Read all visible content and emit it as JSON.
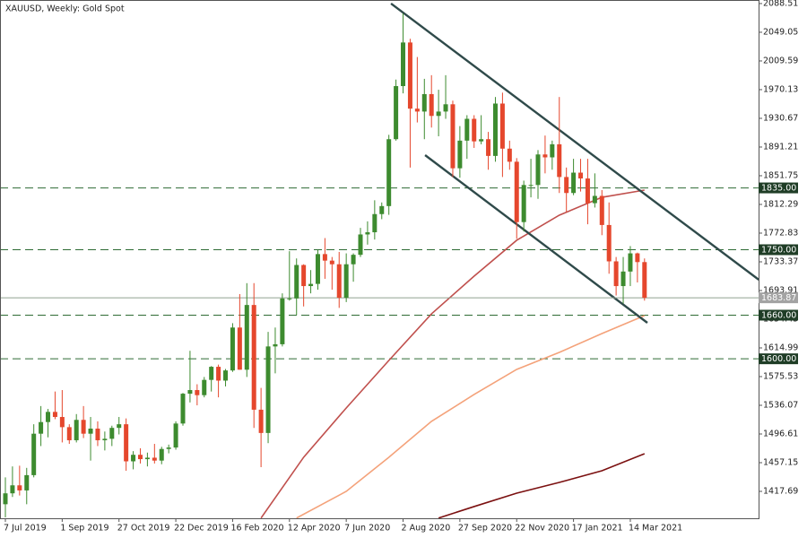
{
  "chart_data": {
    "type": "candlestick",
    "title": "XAUUSD, Weekly:  Gold Spot",
    "categories": [
      "7 Jul 2019",
      null,
      null,
      null,
      null,
      null,
      null,
      null,
      "1 Sep 2019",
      null,
      null,
      null,
      null,
      null,
      null,
      null,
      "27 Oct 2019",
      null,
      null,
      null,
      null,
      null,
      null,
      null,
      "22 Dec 2019",
      null,
      null,
      null,
      null,
      null,
      null,
      null,
      "16 Feb 2020",
      null,
      null,
      null,
      null,
      null,
      null,
      null,
      "12 Apr 2020",
      null,
      null,
      null,
      null,
      null,
      null,
      null,
      "7 Jun 2020",
      null,
      null,
      null,
      null,
      null,
      null,
      null,
      "2 Aug 2020",
      null,
      null,
      null,
      null,
      null,
      null,
      null,
      "27 Sep 2020",
      null,
      null,
      null,
      null,
      null,
      null,
      null,
      "22 Nov 2020",
      null,
      null,
      null,
      null,
      null,
      null,
      null,
      "17 Jan 2021",
      null,
      null,
      null,
      null,
      null,
      null,
      null,
      "14 Mar 2021",
      null,
      null
    ],
    "open": [
      1400,
      1415,
      1426,
      1419,
      1440,
      1497,
      1513,
      1527,
      1520,
      1506,
      1488,
      1516,
      1497,
      1504,
      1488,
      1490,
      1505,
      1510,
      1459,
      1468,
      1462,
      1464,
      1460,
      1476,
      1478,
      1511,
      1552,
      1557,
      1550,
      1571,
      1589,
      1570,
      1584,
      1643,
      1585,
      1674,
      1530,
      1498,
      1617,
      1620,
      1683,
      1683,
      1729,
      1700,
      1703,
      1744,
      1735,
      1730,
      1684,
      1730,
      1743,
      1771,
      1774,
      1799,
      1810,
      1902,
      1975,
      2035,
      1944,
      1940,
      1964,
      1934,
      1940,
      1950,
      1862,
      1900,
      1930,
      1899,
      1902,
      1879,
      1951,
      1889,
      1871,
      1788,
      1839,
      1839,
      1881,
      1877,
      1895,
      1850,
      1828,
      1856,
      1848,
      1814,
      1824,
      1784,
      1734,
      1700,
      1720,
      1745,
      1733
    ],
    "high": [
      1437,
      1452,
      1453,
      1450,
      1510,
      1535,
      1531,
      1555,
      1557,
      1510,
      1524,
      1535,
      1520,
      1514,
      1500,
      1508,
      1520,
      1518,
      1473,
      1477,
      1471,
      1483,
      1479,
      1482,
      1514,
      1553,
      1611,
      1565,
      1575,
      1590,
      1592,
      1586,
      1649,
      1689,
      1704,
      1704,
      1560,
      1637,
      1643,
      1690,
      1748,
      1738,
      1730,
      1722,
      1750,
      1766,
      1740,
      1747,
      1745,
      1745,
      1780,
      1789,
      1818,
      1815,
      1908,
      1984,
      2075,
      2040,
      2015,
      1985,
      1990,
      1970,
      1990,
      1955,
      1920,
      1935,
      1935,
      1935,
      1912,
      1960,
      1966,
      1900,
      1876,
      1845,
      1875,
      1887,
      1907,
      1900,
      1960,
      1863,
      1875,
      1875,
      1875,
      1855,
      1832,
      1815,
      1740,
      1740,
      1755,
      1746,
      1738
    ],
    "low": [
      1382,
      1410,
      1412,
      1400,
      1437,
      1480,
      1492,
      1517,
      1485,
      1483,
      1485,
      1491,
      1460,
      1480,
      1474,
      1480,
      1496,
      1446,
      1448,
      1456,
      1452,
      1456,
      1455,
      1470,
      1475,
      1508,
      1540,
      1536,
      1547,
      1555,
      1547,
      1562,
      1582,
      1585,
      1575,
      1505,
      1451,
      1484,
      1580,
      1617,
      1680,
      1660,
      1672,
      1690,
      1695,
      1710,
      1695,
      1670,
      1678,
      1706,
      1740,
      1757,
      1764,
      1792,
      1798,
      1900,
      1965,
      1863,
      1925,
      1902,
      1918,
      1906,
      1930,
      1850,
      1849,
      1875,
      1890,
      1895,
      1860,
      1871,
      1850,
      1860,
      1765,
      1775,
      1822,
      1820,
      1855,
      1860,
      1828,
      1802,
      1825,
      1830,
      1785,
      1808,
      1770,
      1717,
      1687,
      1676,
      1700,
      1705,
      1680
    ],
    "close": [
      1415,
      1426,
      1419,
      1440,
      1497,
      1513,
      1527,
      1520,
      1506,
      1488,
      1516,
      1497,
      1504,
      1488,
      1490,
      1505,
      1510,
      1459,
      1468,
      1462,
      1464,
      1460,
      1476,
      1478,
      1511,
      1552,
      1557,
      1550,
      1571,
      1589,
      1570,
      1584,
      1643,
      1585,
      1674,
      1530,
      1498,
      1617,
      1620,
      1683,
      1683,
      1729,
      1700,
      1703,
      1744,
      1735,
      1730,
      1684,
      1730,
      1743,
      1771,
      1774,
      1799,
      1810,
      1902,
      1975,
      2035,
      1944,
      1940,
      1964,
      1934,
      1940,
      1950,
      1862,
      1900,
      1930,
      1899,
      1902,
      1879,
      1951,
      1889,
      1871,
      1788,
      1839,
      1839,
      1881,
      1877,
      1895,
      1850,
      1828,
      1856,
      1848,
      1814,
      1824,
      1784,
      1734,
      1700,
      1720,
      1745,
      1733,
      1683.87
    ],
    "up_color": "#3d8b2f",
    "down_color": "#e5472d",
    "ylim": [
      1380.7,
      2093.4
    ],
    "yticks": [
      2088.51,
      2049.05,
      2009.59,
      1970.13,
      1930.67,
      1891.21,
      1851.75,
      1812.29,
      1772.83,
      1733.37,
      1693.91,
      1654.45,
      1614.99,
      1575.53,
      1536.07,
      1496.61,
      1457.15,
      1417.69
    ],
    "moving_averages": [
      {
        "color": "#c0504d",
        "x": [
          36,
          42,
          48,
          54,
          60,
          66,
          72,
          78,
          84,
          90
        ],
        "values": [
          1381,
          1464.6,
          1532.4,
          1597.7,
          1661.8,
          1713.6,
          1763,
          1797.5,
          1822.1,
          1832
        ]
      },
      {
        "color": "#f4a27a",
        "x": [
          41,
          48,
          54,
          60,
          66,
          72,
          78,
          84,
          90
        ],
        "values": [
          1381,
          1417.7,
          1464.6,
          1514,
          1550.9,
          1585.4,
          1608.8,
          1634.7,
          1659.4
        ]
      },
      {
        "color": "#7b1010",
        "x": [
          61,
          66,
          72,
          78,
          84,
          90
        ],
        "values": [
          1381,
          1396.8,
          1415.2,
          1430,
          1446,
          1469.5
        ]
      }
    ],
    "trendlines": [
      {
        "color": "#2f4a4a",
        "x": [
          54.3,
          106.1
        ],
        "values": [
          2088.5,
          1708.7
        ]
      },
      {
        "color": "#2f4a4a",
        "x": [
          59.1,
          90.4
        ],
        "values": [
          1880.1,
          1649.5
        ]
      }
    ],
    "levels": [
      {
        "value": 1835,
        "label": "1835.00"
      },
      {
        "value": 1750,
        "label": "1750.00"
      },
      {
        "value": 1660,
        "label": "1660.00"
      },
      {
        "value": 1600,
        "label": "1600.00"
      }
    ],
    "level_color": "#2e6b34",
    "last_price_color": "#8fa08f"
  }
}
